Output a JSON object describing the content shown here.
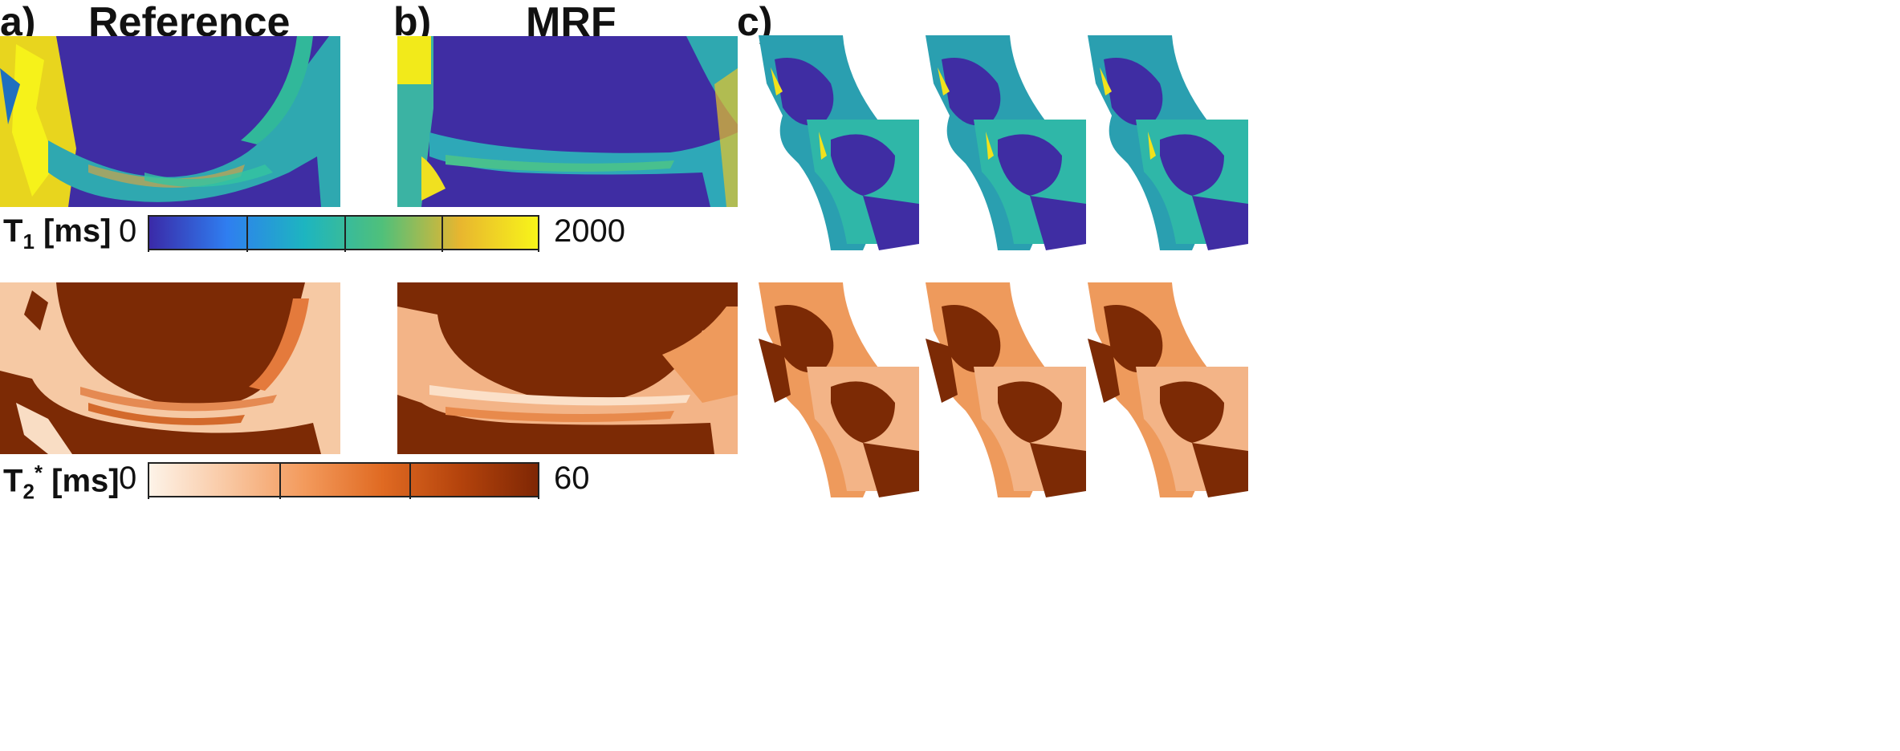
{
  "panels": {
    "a": {
      "letter": "a)",
      "title": "Reference"
    },
    "b": {
      "letter": "b)",
      "title": "MRF"
    },
    "c": {
      "letter": "c)"
    }
  },
  "colorbars": {
    "t1": {
      "symbol": "T",
      "sub": "1",
      "unit": " [ms]",
      "min": "0",
      "max": "2000",
      "colors": [
        "#3a2aa8",
        "#2f7ef0",
        "#1db5c0",
        "#50c07a",
        "#e8b62f",
        "#f8f519"
      ]
    },
    "t2": {
      "symbol": "T",
      "sub": "2",
      "sup": "*",
      "unit": " [ms]",
      "min": "0",
      "max": "60",
      "colors": [
        "#fdf3e8",
        "#f9c8a3",
        "#f39a5c",
        "#e06a22",
        "#b4430c",
        "#7f2704"
      ]
    }
  },
  "colors": {
    "t1_background": "#3f2da3",
    "t1_mid": "#2fb7a8",
    "t1_high": "#f2e21c",
    "t2_background": "#7c2a05",
    "t2_mid": "#f0a26a",
    "t2_light": "#fbe0c8"
  }
}
